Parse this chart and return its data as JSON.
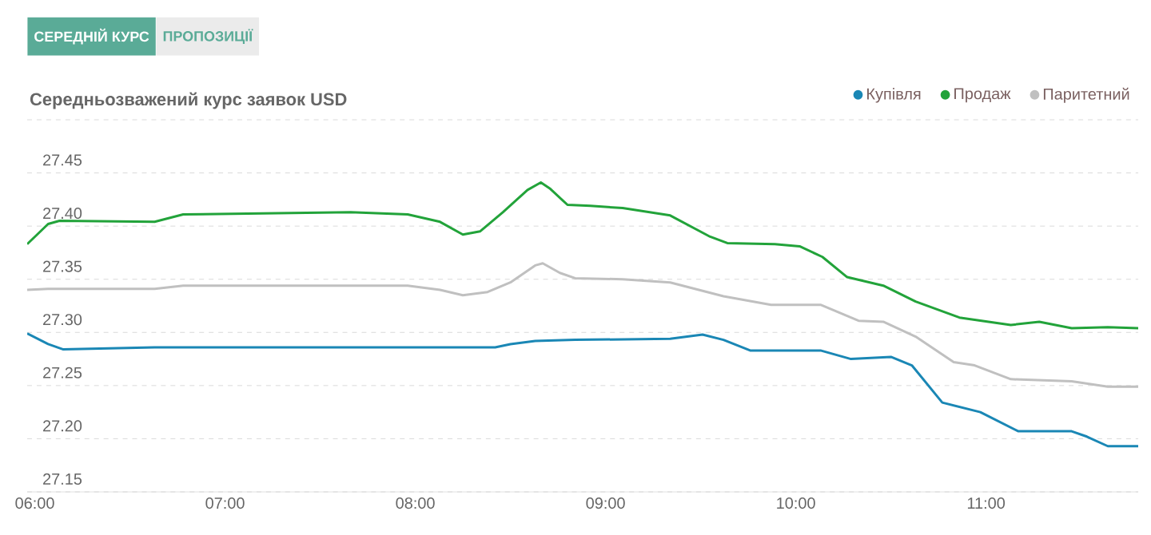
{
  "chart_data": {
    "type": "line",
    "title": "Середньозважений курс заявок USD",
    "annotations": [
      "СЕРЕДНІЙ КУРС",
      "ПРОПОЗИЦІЇ"
    ],
    "xlim": [
      5.96,
      11.8
    ],
    "xticks": [
      {
        "value": 6,
        "label": "06:00"
      },
      {
        "value": 7,
        "label": "07:00"
      },
      {
        "value": 8,
        "label": "08:00"
      },
      {
        "value": 9,
        "label": "09:00"
      },
      {
        "value": 10,
        "label": "10:00"
      },
      {
        "value": 11,
        "label": "11:00"
      }
    ],
    "ylim": [
      27.15,
      27.5
    ],
    "yticks": [
      27.15,
      {
        "value": 27.2,
        "label": "27.20"
      },
      27.25,
      {
        "value": 27.3,
        "label": "27.30"
      },
      27.35,
      {
        "value": 27.4,
        "label": "27.40"
      },
      27.45,
      {
        "value": 27.5,
        "label": null
      }
    ],
    "grid": "y",
    "legend": "top right",
    "series": [
      {
        "name": "Купівля",
        "color": "#1a87b5",
        "x": [
          5.96,
          6.07,
          6.15,
          6.63,
          8.42,
          8.5,
          8.63,
          8.84,
          9.34,
          9.51,
          9.62,
          9.76,
          10.13,
          10.29,
          10.5,
          10.61,
          10.77,
          10.97,
          11.17,
          11.45,
          11.53,
          11.64,
          11.8
        ],
        "values": [
          27.299,
          27.289,
          27.284,
          27.286,
          27.286,
          27.289,
          27.292,
          27.293,
          27.294,
          27.298,
          27.293,
          27.283,
          27.283,
          27.275,
          27.277,
          27.269,
          27.234,
          27.225,
          27.207,
          27.207,
          27.202,
          27.193,
          27.193
        ]
      },
      {
        "name": "Продаж",
        "color": "#22a33a",
        "x": [
          5.96,
          6.07,
          6.13,
          6.63,
          6.78,
          7.66,
          7.96,
          8.13,
          8.25,
          8.34,
          8.46,
          8.59,
          8.66,
          8.71,
          8.8,
          8.92,
          9.09,
          9.34,
          9.55,
          9.64,
          9.89,
          10.02,
          10.14,
          10.27,
          10.46,
          10.63,
          10.86,
          11.13,
          11.28,
          11.45,
          11.64,
          11.8
        ],
        "values": [
          27.383,
          27.402,
          27.405,
          27.404,
          27.411,
          27.413,
          27.411,
          27.404,
          27.392,
          27.395,
          27.413,
          27.434,
          27.441,
          27.435,
          27.42,
          27.419,
          27.417,
          27.41,
          27.39,
          27.384,
          27.383,
          27.381,
          27.371,
          27.352,
          27.344,
          27.329,
          27.314,
          27.307,
          27.31,
          27.304,
          27.305,
          27.304
        ]
      },
      {
        "name": "Паритетний",
        "color": "#c0c0c0",
        "x": [
          5.96,
          6.07,
          6.63,
          6.78,
          7.96,
          8.13,
          8.25,
          8.38,
          8.5,
          8.63,
          8.67,
          8.76,
          8.84,
          9.09,
          9.34,
          9.62,
          9.87,
          10.13,
          10.33,
          10.46,
          10.63,
          10.83,
          10.94,
          11.13,
          11.45,
          11.64,
          11.8
        ],
        "values": [
          27.34,
          27.341,
          27.341,
          27.344,
          27.344,
          27.34,
          27.335,
          27.338,
          27.347,
          27.363,
          27.365,
          27.356,
          27.351,
          27.35,
          27.347,
          27.334,
          27.326,
          27.326,
          27.311,
          27.31,
          27.296,
          27.272,
          27.269,
          27.256,
          27.254,
          27.249,
          27.249
        ]
      }
    ]
  }
}
